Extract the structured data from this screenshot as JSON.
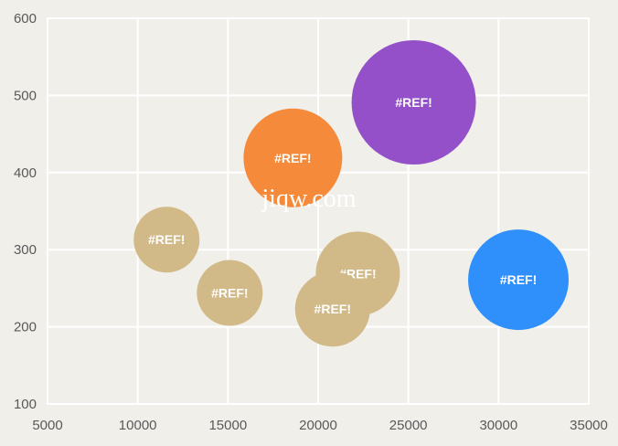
{
  "chart_data": {
    "type": "bubble",
    "grid": true,
    "xlim": [
      5000,
      35000
    ],
    "ylim": [
      100,
      600
    ],
    "xticks": [
      5000,
      10000,
      15000,
      20000,
      25000,
      30000,
      35000
    ],
    "yticks": [
      100,
      200,
      300,
      400,
      500,
      600
    ],
    "points": [
      {
        "x": 11600,
        "y": 313,
        "size": 36,
        "label": "#REF!",
        "color": "#d2b988"
      },
      {
        "x": 15100,
        "y": 244,
        "size": 36,
        "label": "#REF!",
        "color": "#d2b988"
      },
      {
        "x": 22200,
        "y": 269,
        "size": 46,
        "label": "#REF!",
        "color": "#d2b988"
      },
      {
        "x": 20800,
        "y": 223,
        "size": 41,
        "label": "#REF!",
        "color": "#d2b988"
      },
      {
        "x": 18600,
        "y": 419,
        "size": 54,
        "label": "#REF!",
        "color": "#f58a3a"
      },
      {
        "x": 25300,
        "y": 491,
        "size": 68,
        "label": "#REF!",
        "color": "#9450c8"
      },
      {
        "x": 31100,
        "y": 261,
        "size": 55,
        "label": "#REF!",
        "color": "#2f90fc"
      }
    ]
  },
  "watermark": "jiqw.com"
}
